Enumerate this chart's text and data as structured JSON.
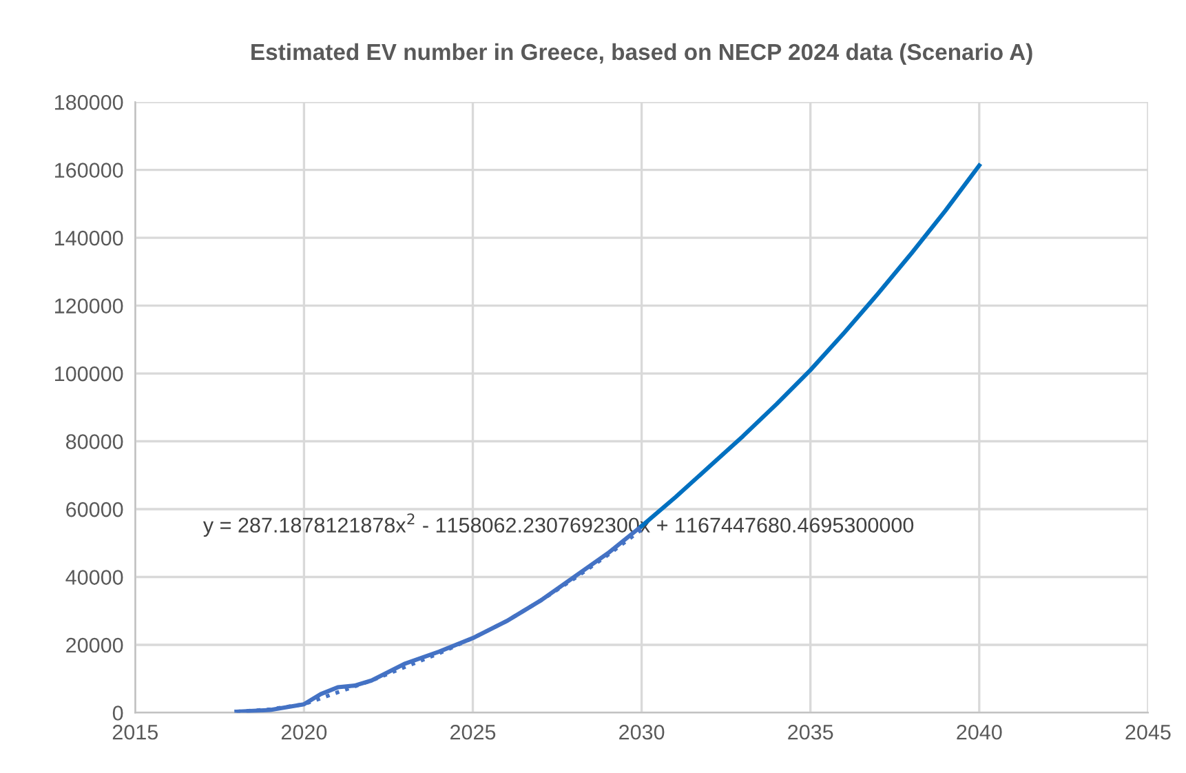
{
  "chart_data": {
    "type": "line",
    "title": "Estimated EV number in Greece, based on NECP 2024 data (Scenario A)",
    "xlim": [
      2015,
      2045
    ],
    "xticks": [
      2015,
      2020,
      2025,
      2030,
      2035,
      2040,
      2045
    ],
    "ylim": [
      0,
      180000
    ],
    "yticks": [
      0,
      20000,
      40000,
      60000,
      80000,
      100000,
      120000,
      140000,
      160000,
      180000
    ],
    "grid": true,
    "legend": false,
    "marker": "none",
    "annotations": [
      "y = 287.1878121878x$^{2}$ - 1158062.2307692300x + 1167447680.4695300000"
    ],
    "series": [
      {
        "color": "#4472c4",
        "line_style": "solid",
        "x": [
          2018,
          2019,
          2020,
          2020.5,
          2021,
          2021.5,
          2022,
          2023,
          2024,
          2025,
          2026,
          2027,
          2028,
          2029,
          2030
        ],
        "values": [
          300,
          800,
          2500,
          5500,
          7500,
          8000,
          9500,
          14500,
          18000,
          22000,
          27000,
          33000,
          40000,
          47000,
          55000
        ]
      },
      {
        "color": "#0070c0",
        "line_style": "solid",
        "x": [
          2030,
          2031,
          2032,
          2033,
          2034,
          2035,
          2036,
          2037,
          2038,
          2039,
          2040
        ],
        "values": [
          55000,
          63500,
          72500,
          81500,
          91000,
          101000,
          112000,
          123500,
          135500,
          148000,
          161300
        ]
      },
      {
        "color": "#4472c4",
        "line_style": "dotted",
        "x": [
          2018,
          2019,
          2020,
          2021,
          2022,
          2023,
          2024,
          2025,
          2026,
          2027,
          2028,
          2029,
          2030
        ],
        "values": [
          300,
          1000,
          2500,
          6000,
          9500,
          13500,
          17500,
          22000,
          27000,
          33000,
          39500,
          46500,
          54000
        ]
      }
    ]
  }
}
